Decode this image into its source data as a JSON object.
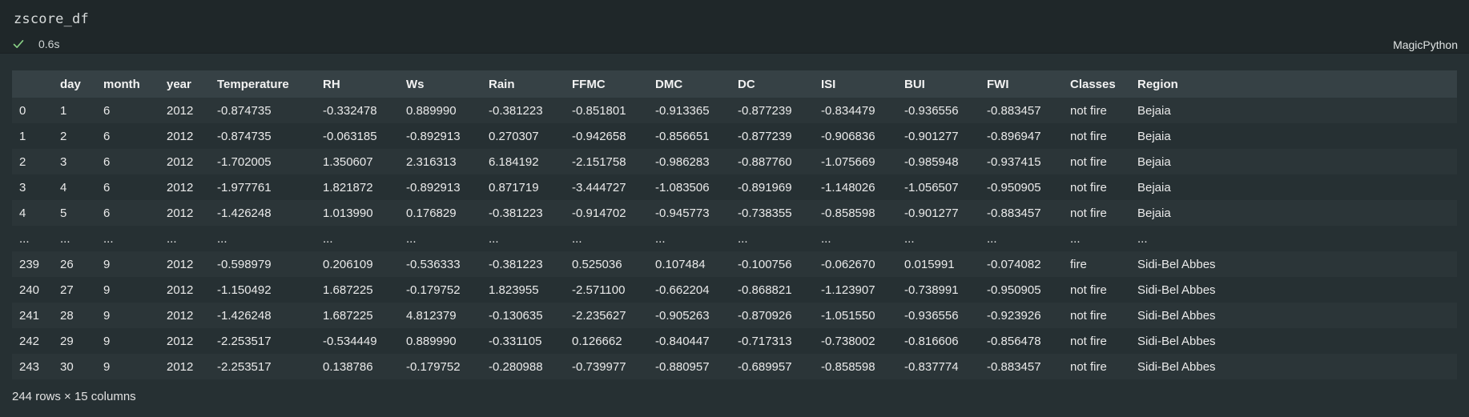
{
  "cell": {
    "code": "zscore_df",
    "exec_time": "0.6s",
    "language": "MagicPython",
    "status_color": "#89d185"
  },
  "table": {
    "columns": [
      "",
      "day",
      "month",
      "year",
      "Temperature",
      "RH",
      "Ws",
      "Rain",
      "FFMC",
      "DMC",
      "DC",
      "ISI",
      "BUI",
      "FWI",
      "Classes",
      "Region"
    ],
    "rows": [
      [
        "0",
        "1",
        "6",
        "2012",
        "-0.874735",
        "-0.332478",
        "0.889990",
        "-0.381223",
        "-0.851801",
        "-0.913365",
        "-0.877239",
        "-0.834479",
        "-0.936556",
        "-0.883457",
        "not fire",
        "Bejaia"
      ],
      [
        "1",
        "2",
        "6",
        "2012",
        "-0.874735",
        "-0.063185",
        "-0.892913",
        "0.270307",
        "-0.942658",
        "-0.856651",
        "-0.877239",
        "-0.906836",
        "-0.901277",
        "-0.896947",
        "not fire",
        "Bejaia"
      ],
      [
        "2",
        "3",
        "6",
        "2012",
        "-1.702005",
        "1.350607",
        "2.316313",
        "6.184192",
        "-2.151758",
        "-0.986283",
        "-0.887760",
        "-1.075669",
        "-0.985948",
        "-0.937415",
        "not fire",
        "Bejaia"
      ],
      [
        "3",
        "4",
        "6",
        "2012",
        "-1.977761",
        "1.821872",
        "-0.892913",
        "0.871719",
        "-3.444727",
        "-1.083506",
        "-0.891969",
        "-1.148026",
        "-1.056507",
        "-0.950905",
        "not fire",
        "Bejaia"
      ],
      [
        "4",
        "5",
        "6",
        "2012",
        "-1.426248",
        "1.013990",
        "0.176829",
        "-0.381223",
        "-0.914702",
        "-0.945773",
        "-0.738355",
        "-0.858598",
        "-0.901277",
        "-0.883457",
        "not fire",
        "Bejaia"
      ],
      [
        "...",
        "...",
        "...",
        "...",
        "...",
        "...",
        "...",
        "...",
        "...",
        "...",
        "...",
        "...",
        "...",
        "...",
        "...",
        "..."
      ],
      [
        "239",
        "26",
        "9",
        "2012",
        "-0.598979",
        "0.206109",
        "-0.536333",
        "-0.381223",
        "0.525036",
        "0.107484",
        "-0.100756",
        "-0.062670",
        "0.015991",
        "-0.074082",
        "fire",
        "Sidi-Bel Abbes"
      ],
      [
        "240",
        "27",
        "9",
        "2012",
        "-1.150492",
        "1.687225",
        "-0.179752",
        "1.823955",
        "-2.571100",
        "-0.662204",
        "-0.868821",
        "-1.123907",
        "-0.738991",
        "-0.950905",
        "not fire",
        "Sidi-Bel Abbes"
      ],
      [
        "241",
        "28",
        "9",
        "2012",
        "-1.426248",
        "1.687225",
        "4.812379",
        "-0.130635",
        "-2.235627",
        "-0.905263",
        "-0.870926",
        "-1.051550",
        "-0.936556",
        "-0.923926",
        "not fire",
        "Sidi-Bel Abbes"
      ],
      [
        "242",
        "29",
        "9",
        "2012",
        "-2.253517",
        "-0.534449",
        "0.889990",
        "-0.331105",
        "0.126662",
        "-0.840447",
        "-0.717313",
        "-0.738002",
        "-0.816606",
        "-0.856478",
        "not fire",
        "Sidi-Bel Abbes"
      ],
      [
        "243",
        "30",
        "9",
        "2012",
        "-2.253517",
        "0.138786",
        "-0.179752",
        "-0.280988",
        "-0.739977",
        "-0.880957",
        "-0.689957",
        "-0.858598",
        "-0.837774",
        "-0.883457",
        "not fire",
        "Sidi-Bel Abbes"
      ]
    ],
    "shape": "244 rows × 15 columns"
  }
}
